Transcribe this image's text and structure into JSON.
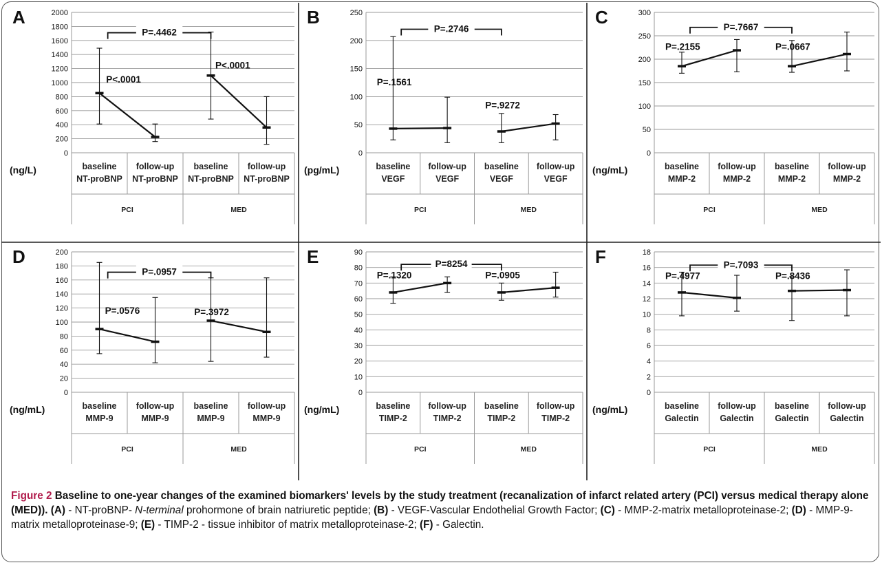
{
  "chart_data": [
    {
      "type": "line",
      "panel_label": "A",
      "ylabel": "(ng/L)",
      "ylim": [
        0,
        2000
      ],
      "yticks": [
        0,
        200,
        400,
        600,
        800,
        1000,
        1200,
        1400,
        1600,
        1800,
        2000
      ],
      "categories": [
        "baseline NT-proBNP",
        "follow-up NT-proBNP",
        "baseline NT-proBNP",
        "follow-up NT-proBNP"
      ],
      "category_lines": [
        [
          "baseline",
          "NT-proBNP"
        ],
        [
          "follow-up",
          "NT-proBNP"
        ],
        [
          "baseline",
          "NT-proBNP"
        ],
        [
          "follow-up",
          "NT-proBNP"
        ]
      ],
      "groups": [
        "PCI",
        "MED"
      ],
      "series": [
        {
          "name": "PCI",
          "x": [
            0,
            1
          ],
          "values": [
            850,
            225
          ],
          "err_low": [
            410,
            160
          ],
          "err_high": [
            1490,
            410
          ]
        },
        {
          "name": "MED",
          "x": [
            2,
            3
          ],
          "values": [
            1100,
            360
          ],
          "err_low": [
            480,
            120
          ],
          "err_high": [
            1720,
            800
          ]
        }
      ],
      "annotations": [
        {
          "text": "P<.0001",
          "at": 0.62,
          "y": 1000
        },
        {
          "text": "P<.0001",
          "at": 2.58,
          "y": 1200
        }
      ],
      "bracket": {
        "text": "P=.4462",
        "from": 0.65,
        "to": 2.5,
        "y": 1710
      }
    },
    {
      "type": "line",
      "panel_label": "B",
      "ylabel": "(pg/mL)",
      "ylim": [
        0,
        250
      ],
      "yticks": [
        0,
        50,
        100,
        150,
        200,
        250
      ],
      "categories": [
        "baseline VEGF",
        "follow-up VEGF",
        "baseline VEGF",
        "follow-up VEGF"
      ],
      "category_lines": [
        [
          "baseline",
          "VEGF"
        ],
        [
          "follow-up",
          "VEGF"
        ],
        [
          "baseline",
          "VEGF"
        ],
        [
          "follow-up",
          "VEGF"
        ]
      ],
      "groups": [
        "PCI",
        "MED"
      ],
      "series": [
        {
          "name": "PCI",
          "x": [
            0,
            1
          ],
          "values": [
            43,
            44
          ],
          "err_low": [
            23,
            18
          ],
          "err_high": [
            207,
            99
          ]
        },
        {
          "name": "MED",
          "x": [
            2,
            3
          ],
          "values": [
            38,
            52
          ],
          "err_low": [
            18,
            23
          ],
          "err_high": [
            70,
            68
          ]
        }
      ],
      "annotations": [
        {
          "text": "P=.1561",
          "at": 0.2,
          "y": 120
        },
        {
          "text": "P=.9272",
          "at": 2.2,
          "y": 79
        }
      ],
      "bracket": {
        "text": "P=.2746",
        "from": 0.65,
        "to": 2.5,
        "y": 220
      }
    },
    {
      "type": "line",
      "panel_label": "C",
      "ylabel": "(ng/mL)",
      "ylim": [
        0,
        300
      ],
      "yticks": [
        0,
        50,
        100,
        150,
        200,
        250,
        300
      ],
      "categories": [
        "baseline MMP-2",
        "follow-up MMP-2",
        "baseline MMP-2",
        "follow-up MMP-2"
      ],
      "category_lines": [
        [
          "baseline",
          "MMP-2"
        ],
        [
          "follow-up",
          "MMP-2"
        ],
        [
          "baseline",
          "MMP-2"
        ],
        [
          "follow-up",
          "MMP-2"
        ]
      ],
      "groups": [
        "PCI",
        "MED"
      ],
      "series": [
        {
          "name": "PCI",
          "x": [
            0,
            1
          ],
          "values": [
            185,
            219
          ],
          "err_low": [
            170,
            173
          ],
          "err_high": [
            215,
            242
          ]
        },
        {
          "name": "MED",
          "x": [
            2,
            3
          ],
          "values": [
            185,
            211
          ],
          "err_low": [
            172,
            175
          ],
          "err_high": [
            240,
            258
          ]
        }
      ],
      "annotations": [
        {
          "text": "P=.2155",
          "at": 0.2,
          "y": 220
        },
        {
          "text": "P=.0667",
          "at": 2.2,
          "y": 220
        }
      ],
      "bracket": {
        "text": "P=.7667",
        "from": 0.65,
        "to": 2.5,
        "y": 268
      }
    },
    {
      "type": "line",
      "panel_label": "D",
      "ylabel": "(ng/mL)",
      "ylim": [
        0,
        200
      ],
      "yticks": [
        0,
        20,
        40,
        60,
        80,
        100,
        120,
        140,
        160,
        180,
        200
      ],
      "categories": [
        "baseline MMP-9",
        "follow-up MMP-9",
        "baseline MMP-9",
        "follow-up MMP-9"
      ],
      "category_lines": [
        [
          "baseline",
          "MMP-9"
        ],
        [
          "follow-up",
          "MMP-9"
        ],
        [
          "baseline",
          "MMP-9"
        ],
        [
          "follow-up",
          "MMP-9"
        ]
      ],
      "groups": [
        "PCI",
        "MED"
      ],
      "series": [
        {
          "name": "PCI",
          "x": [
            0,
            1
          ],
          "values": [
            90,
            72
          ],
          "err_low": [
            55,
            42
          ],
          "err_high": [
            185,
            135
          ]
        },
        {
          "name": "MED",
          "x": [
            2,
            3
          ],
          "values": [
            102,
            86
          ],
          "err_low": [
            44,
            50
          ],
          "err_high": [
            163,
            163
          ]
        }
      ],
      "annotations": [
        {
          "text": "P=.0576",
          "at": 0.6,
          "y": 112
        },
        {
          "text": "P=.3972",
          "at": 2.2,
          "y": 110
        }
      ],
      "bracket": {
        "text": "P=.0957",
        "from": 0.65,
        "to": 2.5,
        "y": 171
      }
    },
    {
      "type": "line",
      "panel_label": "E",
      "ylabel": "(ng/mL)",
      "ylim": [
        0,
        90
      ],
      "yticks": [
        0,
        10,
        20,
        30,
        40,
        50,
        60,
        70,
        80,
        90
      ],
      "categories": [
        "baseline TIMP-2",
        "follow-up TIMP-2",
        "baseline TIMP-2",
        "follow-up TIMP-2"
      ],
      "category_lines": [
        [
          "baseline",
          "TIMP-2"
        ],
        [
          "follow-up",
          "TIMP-2"
        ],
        [
          "baseline",
          "TIMP-2"
        ],
        [
          "follow-up",
          "TIMP-2"
        ]
      ],
      "groups": [
        "PCI",
        "MED"
      ],
      "series": [
        {
          "name": "PCI",
          "x": [
            0,
            1
          ],
          "values": [
            64,
            70
          ],
          "err_low": [
            57,
            64
          ],
          "err_high": [
            74,
            74
          ]
        },
        {
          "name": "MED",
          "x": [
            2,
            3
          ],
          "values": [
            64,
            67
          ],
          "err_low": [
            59,
            61
          ],
          "err_high": [
            70,
            77
          ]
        }
      ],
      "annotations": [
        {
          "text": "P=.1320",
          "at": 0.2,
          "y": 73
        },
        {
          "text": "P=.0905",
          "at": 2.2,
          "y": 73
        }
      ],
      "bracket": {
        "text": "P=8254",
        "from": 0.65,
        "to": 2.5,
        "y": 82
      }
    },
    {
      "type": "line",
      "panel_label": "F",
      "ylabel": "(ng/mL)",
      "ylim": [
        0,
        18
      ],
      "yticks": [
        0,
        2,
        4,
        6,
        8,
        10,
        12,
        14,
        16,
        18
      ],
      "categories": [
        "baseline Galectin",
        "follow-up Galectin",
        "baseline Galectin",
        "follow-up Galectin"
      ],
      "category_lines": [
        [
          "baseline",
          "Galectin"
        ],
        [
          "follow-up",
          "Galectin"
        ],
        [
          "baseline",
          "Galectin"
        ],
        [
          "follow-up",
          "Galectin"
        ]
      ],
      "groups": [
        "PCI",
        "MED"
      ],
      "series": [
        {
          "name": "PCI",
          "x": [
            0,
            1
          ],
          "values": [
            12.8,
            12.1
          ],
          "err_low": [
            9.8,
            10.4
          ],
          "err_high": [
            15.4,
            15.0
          ]
        },
        {
          "name": "MED",
          "x": [
            2,
            3
          ],
          "values": [
            13.0,
            13.1
          ],
          "err_low": [
            9.2,
            9.8
          ],
          "err_high": [
            14.8,
            15.7
          ]
        }
      ],
      "annotations": [
        {
          "text": "P=.4977",
          "at": 0.2,
          "y": 14.5
        },
        {
          "text": "P=.8436",
          "at": 2.2,
          "y": 14.5
        }
      ],
      "bracket": {
        "text": "P=.7093",
        "from": 0.65,
        "to": 2.5,
        "y": 16.3
      }
    }
  ],
  "caption": {
    "title": "Figure 2",
    "title_rest": "Baseline to one-year changes of the examined biomarkers' levels by the study treatment (recanalization of infarct related artery (PCI) versus medical therapy alone (MED)).",
    "a_label": "(A)",
    "a_text_1": "- NT-proBNP-",
    "a_text_ital": "N-terminal",
    "a_text_2": "prohormone of brain natriuretic peptide;",
    "b_label": "(B)",
    "b_text": "- VEGF-Vascular Endothelial Growth Factor;",
    "c_label": "(C)",
    "c_text": "- MMP-2-matrix metalloproteinase-2;",
    "d_label": "(D)",
    "d_text": "- MMP-9-matrix metalloproteinase-9;",
    "e_label": "(E)",
    "e_text": "- TIMP-2 - tissue inhibitor of matrix metalloproteinase-2;",
    "f_label": "(F)",
    "f_text": "- Galectin."
  },
  "colors": {
    "line": "#111111",
    "grid": "#9a9a9a",
    "divider": "#222222",
    "caption_title": "#b11c4c"
  }
}
